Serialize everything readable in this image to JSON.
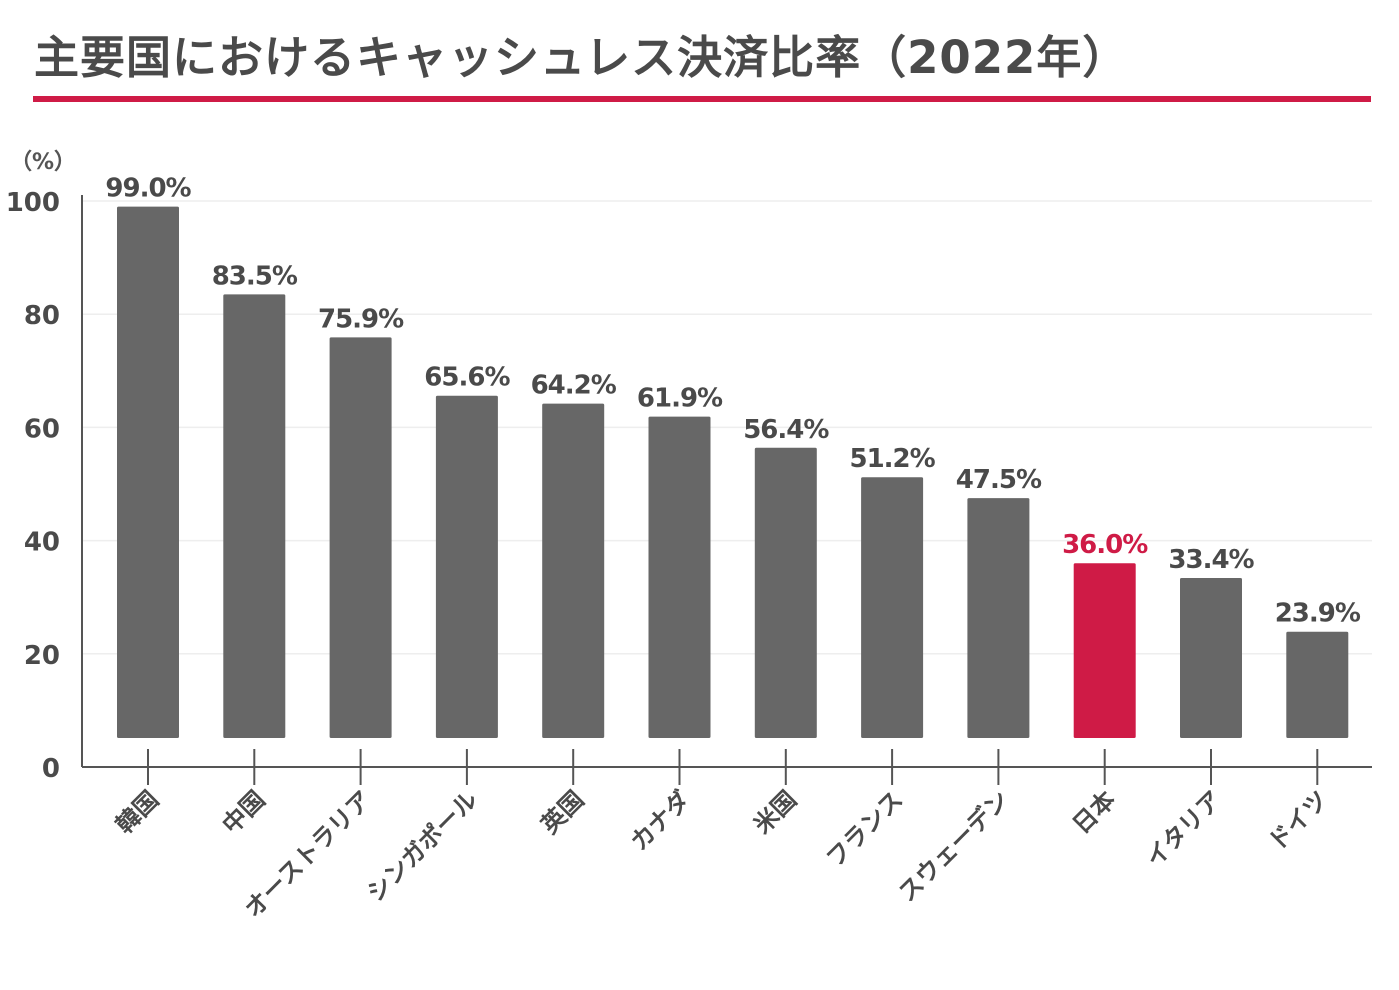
{
  "title": "主要国におけるキャッシュレス決済比率（2022年）",
  "unit_label": "（%）",
  "colors": {
    "bar": "#676767",
    "highlight": "#cf1b46",
    "title_rule": "#cf1b46",
    "text": "#4a4a4a",
    "axis": "#555555",
    "grid": "#eeeeee"
  },
  "chart_data": {
    "type": "bar",
    "title": "主要国におけるキャッシュレス決済比率（2022年）",
    "xlabel": "",
    "ylabel": "（%）",
    "ylim": [
      0,
      100
    ],
    "yticks": [
      0,
      20,
      40,
      60,
      80,
      100
    ],
    "grid": true,
    "categories": [
      "韓国",
      "中国",
      "オーストラリア",
      "シンガポール",
      "英国",
      "カナダ",
      "米国",
      "フランス",
      "スウェーデン",
      "日本",
      "イタリア",
      "ドイツ"
    ],
    "values": [
      99.0,
      83.5,
      75.9,
      65.6,
      64.2,
      61.9,
      56.4,
      51.2,
      47.5,
      36.0,
      33.4,
      23.9
    ],
    "value_labels": [
      "99.0%",
      "83.5%",
      "75.9%",
      "65.6%",
      "64.2%",
      "61.9%",
      "56.4%",
      "51.2%",
      "47.5%",
      "36.0%",
      "33.4%",
      "23.9%"
    ],
    "highlight_category": "日本"
  }
}
